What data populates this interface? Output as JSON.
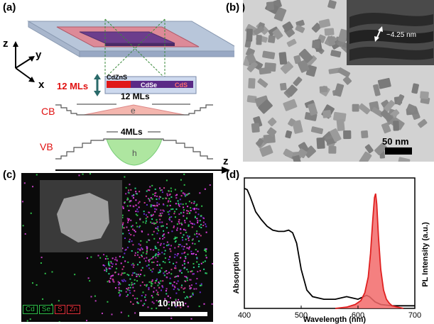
{
  "figure": {
    "panel_a": {
      "label": "(a)",
      "axes": {
        "z": "z",
        "y": "y",
        "x": "x"
      },
      "thickness_label": "12 MLs",
      "shell_label": "CdZnS",
      "core_label": "CdSe",
      "crown_label": "CdS",
      "cb_label": "CB",
      "vb_label": "VB",
      "cb_width_label": "12 MLs",
      "vb_width_label": "4MLs",
      "electron_label": "e",
      "hole_label": "h",
      "z_axis_label": "z",
      "colors": {
        "shell": "#b8c6da",
        "crown": "#dd8a98",
        "core": "#6c3d8c",
        "electron": "#f4b6ae",
        "hole": "#aee6a0",
        "label_red": "#e01010"
      }
    },
    "panel_b": {
      "label": "(b)",
      "inset_dimension": "~4.25 nm",
      "scalebar_label": "50 nm"
    },
    "panel_c": {
      "label": "(c)",
      "scalebar_label": "10 nm",
      "legend": [
        {
          "text": "Cd",
          "color": "#2fbf4a"
        },
        {
          "text": "Se",
          "color": "#2fbf4a"
        },
        {
          "text": "S",
          "color": "#e0303a"
        },
        {
          "text": "Zn",
          "color": "#e0303a"
        }
      ]
    },
    "panel_d": {
      "label": "(d)",
      "chart_data": {
        "type": "line",
        "xlabel": "Wavelength (nm)",
        "ylabel": "Absorption",
        "y2label": "PL Intensity (a.u.)",
        "xlim": [
          400,
          700
        ],
        "xticks": [
          400,
          500,
          600,
          700
        ],
        "series": [
          {
            "color": "#000000",
            "x": [
              400,
              405,
              410,
              420,
              430,
              440,
              450,
              460,
              470,
              478,
              485,
              492,
              500,
              510,
              520,
              540,
              560,
              570,
              580,
              590,
              600,
              610,
              615,
              620,
              630,
              640,
              660,
              680,
              700
            ],
            "y": [
              0.92,
              0.91,
              0.86,
              0.74,
              0.68,
              0.63,
              0.6,
              0.59,
              0.59,
              0.6,
              0.58,
              0.5,
              0.3,
              0.14,
              0.09,
              0.07,
              0.07,
              0.08,
              0.09,
              0.08,
              0.07,
              0.09,
              0.1,
              0.09,
              0.05,
              0.03,
              0.02,
              0.02,
              0.02
            ]
          },
          {
            "color": "#e02020",
            "fill": "#f26a6a",
            "x": [
              560,
              580,
              595,
              605,
              612,
              618,
              622,
              626,
              629,
              631,
              633,
              636,
              640,
              645,
              650,
              655,
              660,
              670,
              680
            ],
            "y": [
              0.0,
              0.01,
              0.03,
              0.06,
              0.12,
              0.24,
              0.42,
              0.68,
              0.85,
              0.88,
              0.8,
              0.55,
              0.3,
              0.14,
              0.07,
              0.04,
              0.02,
              0.01,
              0.0
            ]
          }
        ]
      }
    }
  }
}
